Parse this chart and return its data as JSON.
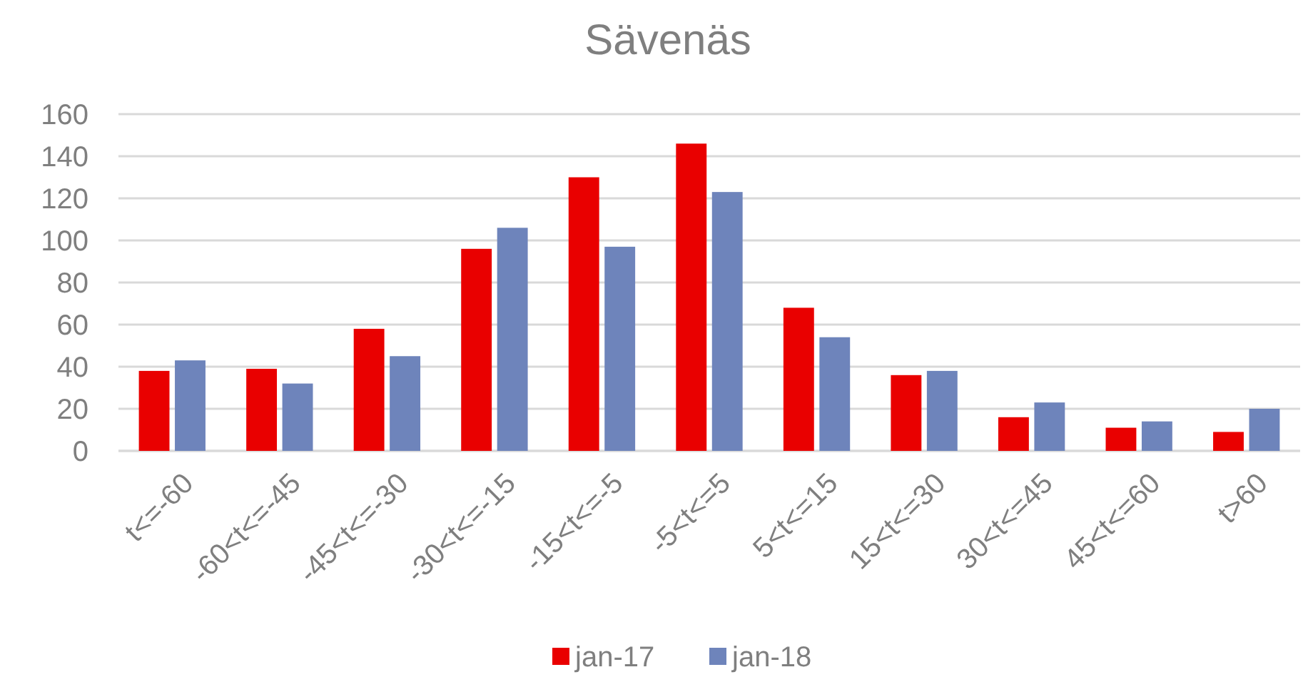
{
  "chart_data": {
    "type": "bar",
    "title": "Sävenäs",
    "categories": [
      "t<=-60",
      "-60<t<=-45",
      "-45<t<=-30",
      "-30<t<=-15",
      "-15<t<=-5",
      "-5<t<=5",
      "5<t<=15",
      "15<t<=30",
      "30<t<=45",
      "45<t<=60",
      "t>60"
    ],
    "series": [
      {
        "name": "jan-17",
        "color": "#e90000",
        "values": [
          38,
          39,
          58,
          96,
          130,
          146,
          68,
          36,
          16,
          11,
          9
        ]
      },
      {
        "name": "jan-18",
        "color": "#6e84bb",
        "values": [
          43,
          32,
          45,
          106,
          97,
          123,
          54,
          38,
          23,
          14,
          20
        ]
      }
    ],
    "ylim": [
      0,
      160
    ],
    "yticks": [
      0,
      20,
      40,
      60,
      80,
      100,
      120,
      140,
      160
    ],
    "grid": "y",
    "legend": "bottom"
  }
}
